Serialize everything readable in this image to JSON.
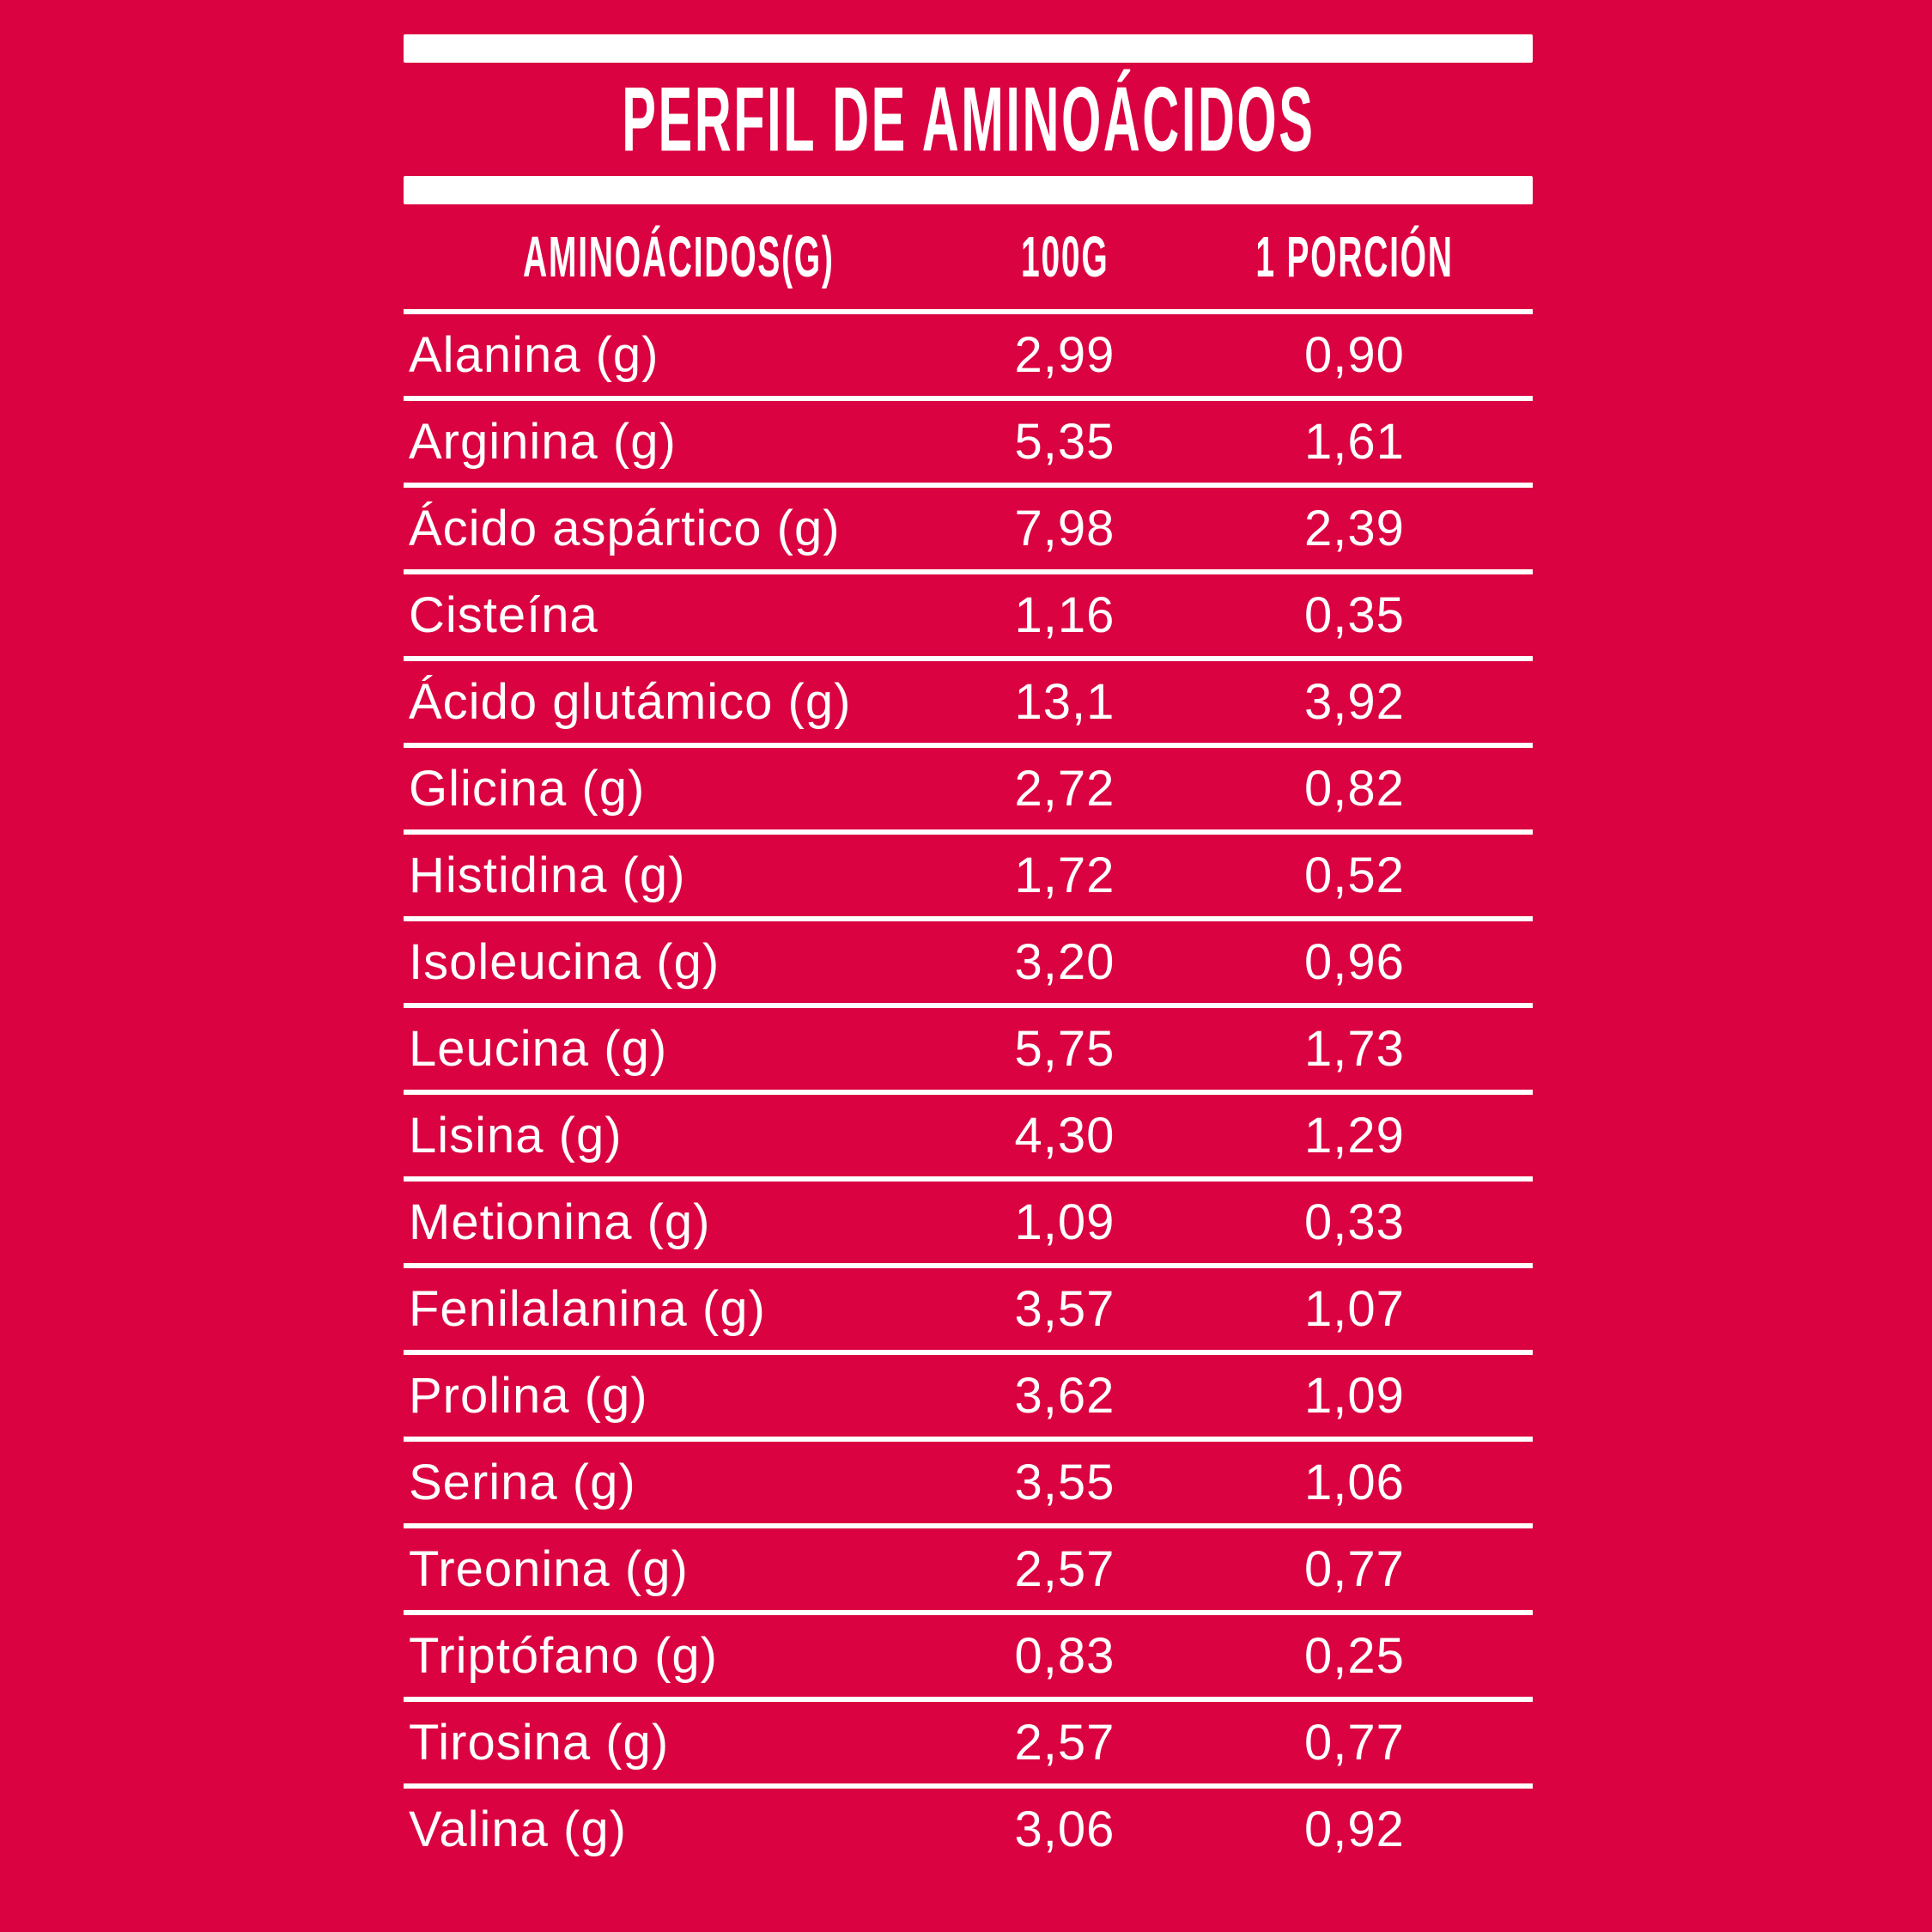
{
  "colors": {
    "background": "#DA0240",
    "foreground": "#FFFFFF"
  },
  "header": {
    "title": "PERFIL DE AMINOÁCIDOS"
  },
  "table": {
    "columns": {
      "name": "AMINOÁCIDOS(G)",
      "per100g": "100G",
      "portion": "1 PORCIÓN"
    },
    "rows": [
      {
        "name": "Alanina (g)",
        "g100": "2,99",
        "portion": "0,90"
      },
      {
        "name": "Arginina (g)",
        "g100": "5,35",
        "portion": "1,61"
      },
      {
        "name": "Ácido aspártico (g)",
        "g100": "7,98",
        "portion": "2,39"
      },
      {
        "name": "Cisteína",
        "g100": "1,16",
        "portion": "0,35"
      },
      {
        "name": "Ácido glutámico (g)",
        "g100": "13,1",
        "portion": "3,92"
      },
      {
        "name": "Glicina (g)",
        "g100": "2,72",
        "portion": "0,82"
      },
      {
        "name": "Histidina (g)",
        "g100": "1,72",
        "portion": "0,52"
      },
      {
        "name": "Isoleucina (g)",
        "g100": "3,20",
        "portion": "0,96"
      },
      {
        "name": "Leucina (g)",
        "g100": "5,75",
        "portion": "1,73"
      },
      {
        "name": "Lisina (g)",
        "g100": "4,30",
        "portion": "1,29"
      },
      {
        "name": "Metionina (g)",
        "g100": "1,09",
        "portion": "0,33"
      },
      {
        "name": "Fenilalanina (g)",
        "g100": "3,57",
        "portion": "1,07"
      },
      {
        "name": "Prolina (g)",
        "g100": "3,62",
        "portion": "1,09"
      },
      {
        "name": "Serina (g)",
        "g100": "3,55",
        "portion": "1,06"
      },
      {
        "name": "Treonina (g)",
        "g100": "2,57",
        "portion": "0,77"
      },
      {
        "name": "Triptófano (g)",
        "g100": "0,83",
        "portion": "0,25"
      },
      {
        "name": "Tirosina (g)",
        "g100": "2,57",
        "portion": "0,77"
      },
      {
        "name": "Valina (g)",
        "g100": "3,06",
        "portion": "0,92"
      }
    ]
  },
  "chart_data": {
    "type": "table",
    "title": "PERFIL DE AMINOÁCIDOS",
    "columns": [
      "AMINOÁCIDOS(G)",
      "100G",
      "1 PORCIÓN"
    ],
    "rows": [
      [
        "Alanina (g)",
        "2,99",
        "0,90"
      ],
      [
        "Arginina (g)",
        "5,35",
        "1,61"
      ],
      [
        "Ácido aspártico (g)",
        "7,98",
        "2,39"
      ],
      [
        "Cisteína",
        "1,16",
        "0,35"
      ],
      [
        "Ácido glutámico (g)",
        "13,1",
        "3,92"
      ],
      [
        "Glicina (g)",
        "2,72",
        "0,82"
      ],
      [
        "Histidina (g)",
        "1,72",
        "0,52"
      ],
      [
        "Isoleucina (g)",
        "3,20",
        "0,96"
      ],
      [
        "Leucina (g)",
        "5,75",
        "1,73"
      ],
      [
        "Lisina (g)",
        "4,30",
        "1,29"
      ],
      [
        "Metionina (g)",
        "1,09",
        "0,33"
      ],
      [
        "Fenilalanina (g)",
        "3,57",
        "1,07"
      ],
      [
        "Prolina (g)",
        "3,62",
        "1,09"
      ],
      [
        "Serina (g)",
        "3,55",
        "1,06"
      ],
      [
        "Treonina (g)",
        "2,57",
        "0,77"
      ],
      [
        "Triptófano (g)",
        "0,83",
        "0,25"
      ],
      [
        "Tirosina (g)",
        "2,57",
        "0,77"
      ],
      [
        "Valina (g)",
        "3,06",
        "0,92"
      ]
    ],
    "layout": {
      "numbers_decimal_separator": "comma",
      "values_unit": "g",
      "grid": "horizontal-rules-only",
      "background": "#DA0240",
      "text_color": "#FFFFFF"
    }
  }
}
